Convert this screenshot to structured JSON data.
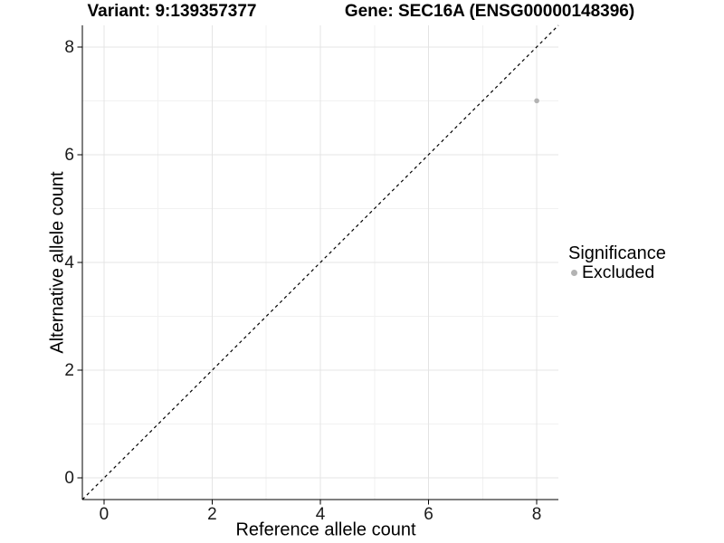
{
  "header": {
    "variant_title": "Variant: 9:139357377",
    "gene_title": "Gene: SEC16A (ENSG00000148396)"
  },
  "legend": {
    "title": "Significance",
    "items": [
      {
        "label": "Excluded",
        "color": "#b3b3b3"
      }
    ]
  },
  "colors": {
    "background": "#ffffff",
    "grid_major": "#e4e4e4",
    "grid_minor": "#f1f1f1",
    "axis_line": "#000000",
    "tick_text": "#1a1a1a",
    "point": "#b3b3b3",
    "reference_line": "#000000"
  },
  "chart_data": {
    "type": "scatter",
    "title_left": "Variant: 9:139357377",
    "title_right": "Gene: SEC16A (ENSG00000148396)",
    "xlabel": "Reference allele count",
    "ylabel": "Alternative allele count",
    "xlim": [
      -0.4,
      8.4
    ],
    "ylim": [
      -0.4,
      8.4
    ],
    "x_major_ticks": [
      0,
      2,
      4,
      6,
      8
    ],
    "x_minor_ticks": [
      1,
      3,
      5,
      7
    ],
    "y_major_ticks": [
      0,
      2,
      4,
      6,
      8
    ],
    "y_minor_ticks": [
      1,
      3,
      5,
      7
    ],
    "x_tick_labels": [
      "0",
      "2",
      "4",
      "6",
      "8"
    ],
    "y_tick_labels": [
      "0",
      "2",
      "4",
      "6",
      "8"
    ],
    "grid": true,
    "legend_position": "right",
    "series": [
      {
        "name": "Excluded",
        "color": "#b3b3b3",
        "points": [
          {
            "x": 8,
            "y": 7
          }
        ]
      }
    ],
    "reference_line": {
      "type": "identity",
      "equation": "y = x",
      "style": "dashed",
      "color": "#000000"
    }
  }
}
